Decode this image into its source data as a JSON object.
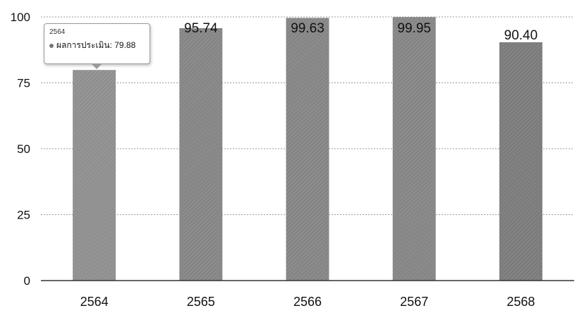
{
  "chart_data": {
    "type": "bar",
    "categories": [
      "2564",
      "2565",
      "2566",
      "2567",
      "2568"
    ],
    "series": [
      {
        "name": "ผลการประเมิน",
        "values": [
          79.88,
          95.74,
          99.63,
          99.95,
          90.4
        ]
      }
    ],
    "data_labels": [
      "",
      "95.74",
      "99.63",
      "99.95",
      "90.40"
    ],
    "ylim": [
      0,
      100
    ],
    "yticks": [
      0,
      25,
      50,
      75,
      100
    ],
    "grid": true,
    "bar_colors": [
      "#8f8f8f",
      "#858585",
      "#858585",
      "#858585",
      "#7b7b7b"
    ]
  },
  "tooltip": {
    "title": "2564",
    "series_name": "ผลการประเมิน",
    "value": "79.88"
  }
}
